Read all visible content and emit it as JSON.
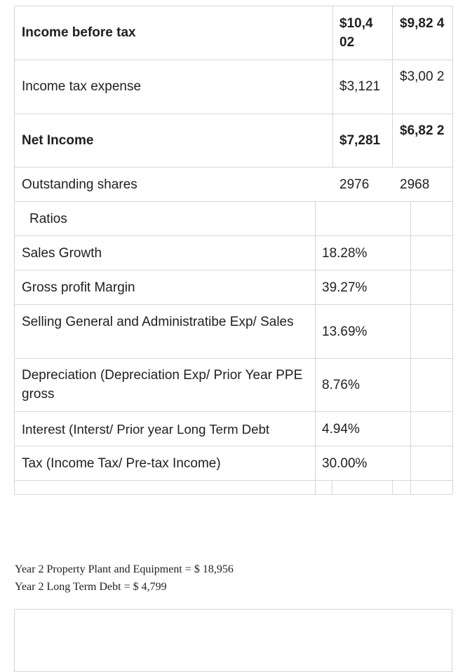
{
  "table": {
    "top_rows": [
      {
        "label": "Income before tax",
        "bold": true,
        "col1": "$10,4 02",
        "col2": "$9,82 4"
      },
      {
        "label": "Income tax expense",
        "bold": false,
        "col1": "$3,121",
        "col2": "$3,00 2"
      },
      {
        "label": "Net Income",
        "bold": true,
        "col1": "$7,281",
        "col2": "$6,82 2"
      },
      {
        "label": "Outstanding shares",
        "bold": false,
        "col1": "2976",
        "col2": "2968"
      }
    ],
    "ratios_header": "Ratios",
    "ratio_rows": [
      {
        "label": "Sales Growth",
        "value": "18.28%"
      },
      {
        "label": "Gross profit Margin",
        "value": "39.27%"
      },
      {
        "label": "Selling General and Administratibe Exp/ Sales",
        "value": "13.69%"
      },
      {
        "label": "Depreciation (Depreciation Exp/ Prior Year PPE gross",
        "value": "8.76%"
      },
      {
        "label": "Interest (Interst/ Prior year Long Term Debt",
        "value": "4.94%"
      },
      {
        "label": "Tax (Income Tax/ Pre-tax Income)",
        "value": "30.00%"
      }
    ]
  },
  "notes": {
    "line1": "Year 2 Property Plant and Equipment = $ 18,956",
    "line2": "Year 2 Long Term Debt = $ 4,799"
  }
}
